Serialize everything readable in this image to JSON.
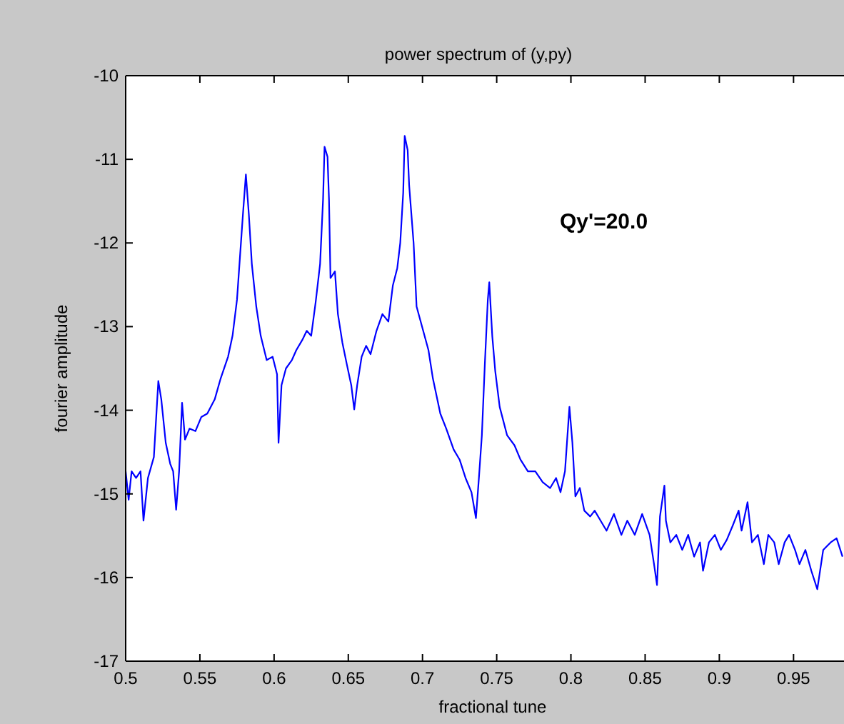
{
  "chart_data": {
    "type": "line",
    "title": "power spectrum of (y,py)",
    "xlabel": "fractional tune",
    "ylabel": "fourier amplitude",
    "annotations": [
      "Qy'=20.0"
    ],
    "xlim": [
      0.5,
      0.984
    ],
    "xticks": [
      0.5,
      0.55,
      0.6,
      0.65,
      0.7,
      0.75,
      0.8,
      0.85,
      0.9,
      0.95
    ],
    "ylim": [
      -17,
      -10
    ],
    "yticks": [
      -17,
      -16,
      -15,
      -14,
      -13,
      -12,
      -11,
      -10
    ],
    "grid": false,
    "marker": "none",
    "line_style": "solid",
    "series": [
      {
        "color": "#0000ff",
        "x": [
          0.5,
          0.502,
          0.504,
          0.507,
          0.51,
          0.512,
          0.515,
          0.519,
          0.522,
          0.524,
          0.527,
          0.53,
          0.532,
          0.534,
          0.536,
          0.538,
          0.54,
          0.543,
          0.547,
          0.551,
          0.555,
          0.56,
          0.564,
          0.569,
          0.572,
          0.575,
          0.577,
          0.579,
          0.581,
          0.583,
          0.585,
          0.588,
          0.591,
          0.595,
          0.599,
          0.602,
          0.603,
          0.605,
          0.608,
          0.612,
          0.615,
          0.619,
          0.622,
          0.625,
          0.628,
          0.631,
          0.633,
          0.634,
          0.636,
          0.637,
          0.638,
          0.641,
          0.643,
          0.646,
          0.649,
          0.652,
          0.654,
          0.656,
          0.659,
          0.662,
          0.665,
          0.669,
          0.673,
          0.677,
          0.68,
          0.683,
          0.685,
          0.687,
          0.688,
          0.69,
          0.691,
          0.694,
          0.696,
          0.7,
          0.704,
          0.707,
          0.712,
          0.716,
          0.721,
          0.725,
          0.729,
          0.733,
          0.736,
          0.738,
          0.74,
          0.742,
          0.744,
          0.745,
          0.747,
          0.749,
          0.752,
          0.757,
          0.762,
          0.766,
          0.771,
          0.776,
          0.781,
          0.786,
          0.79,
          0.793,
          0.796,
          0.799,
          0.801,
          0.803,
          0.806,
          0.809,
          0.813,
          0.816,
          0.82,
          0.824,
          0.829,
          0.834,
          0.838,
          0.843,
          0.848,
          0.853,
          0.856,
          0.858,
          0.86,
          0.863,
          0.864,
          0.867,
          0.871,
          0.875,
          0.879,
          0.883,
          0.887,
          0.889,
          0.893,
          0.897,
          0.901,
          0.905,
          0.909,
          0.913,
          0.915,
          0.919,
          0.922,
          0.926,
          0.93,
          0.933,
          0.937,
          0.94,
          0.944,
          0.947,
          0.951,
          0.954,
          0.958,
          0.962,
          0.966,
          0.97,
          0.975,
          0.979,
          0.983
        ],
        "values": [
          -14.73,
          -15.07,
          -14.73,
          -14.81,
          -14.73,
          -15.32,
          -14.81,
          -14.56,
          -13.65,
          -13.87,
          -14.39,
          -14.64,
          -14.73,
          -15.19,
          -14.73,
          -13.91,
          -14.35,
          -14.22,
          -14.25,
          -14.08,
          -14.04,
          -13.87,
          -13.62,
          -13.36,
          -13.11,
          -12.68,
          -12.17,
          -11.66,
          -11.18,
          -11.66,
          -12.25,
          -12.76,
          -13.11,
          -13.4,
          -13.36,
          -13.57,
          -14.39,
          -13.7,
          -13.5,
          -13.4,
          -13.28,
          -13.16,
          -13.05,
          -13.11,
          -12.71,
          -12.25,
          -11.48,
          -10.85,
          -10.97,
          -11.48,
          -12.42,
          -12.34,
          -12.85,
          -13.19,
          -13.45,
          -13.7,
          -13.99,
          -13.7,
          -13.36,
          -13.23,
          -13.33,
          -13.05,
          -12.85,
          -12.94,
          -12.51,
          -12.3,
          -12.0,
          -11.4,
          -10.72,
          -10.89,
          -11.31,
          -12.0,
          -12.76,
          -13.02,
          -13.28,
          -13.62,
          -14.04,
          -14.22,
          -14.47,
          -14.59,
          -14.81,
          -14.98,
          -15.29,
          -14.81,
          -14.3,
          -13.45,
          -12.68,
          -12.47,
          -13.11,
          -13.53,
          -13.96,
          -14.3,
          -14.42,
          -14.59,
          -14.73,
          -14.73,
          -14.86,
          -14.93,
          -14.81,
          -14.98,
          -14.73,
          -13.96,
          -14.39,
          -15.03,
          -14.93,
          -15.2,
          -15.27,
          -15.2,
          -15.32,
          -15.44,
          -15.24,
          -15.49,
          -15.32,
          -15.49,
          -15.24,
          -15.49,
          -15.84,
          -16.09,
          -15.27,
          -14.9,
          -15.32,
          -15.58,
          -15.49,
          -15.67,
          -15.49,
          -15.75,
          -15.58,
          -15.92,
          -15.58,
          -15.49,
          -15.67,
          -15.55,
          -15.38,
          -15.2,
          -15.44,
          -15.1,
          -15.58,
          -15.49,
          -15.84,
          -15.49,
          -15.58,
          -15.84,
          -15.58,
          -15.49,
          -15.67,
          -15.84,
          -15.67,
          -15.92,
          -16.14,
          -15.67,
          -15.58,
          -15.53,
          -15.75
        ]
      }
    ]
  }
}
